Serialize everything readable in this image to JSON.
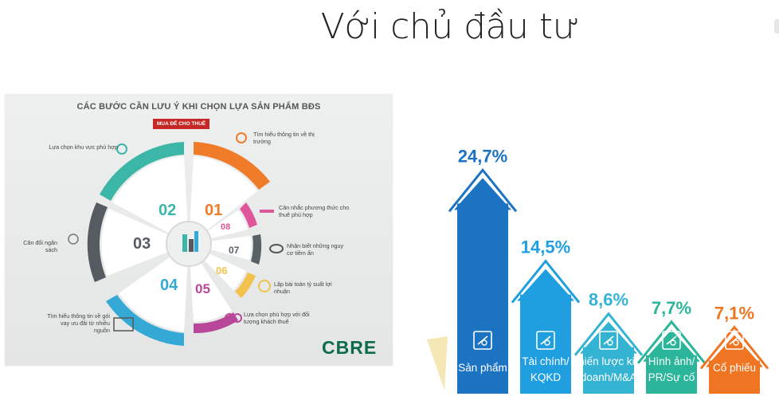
{
  "page": {
    "title": "Với chủ đầu tư"
  },
  "infographic": {
    "title": "CÁC BƯỚC CẦN LƯU Ý KHI CHỌN LỰA SẢN PHẨM BĐS",
    "badge": "MUA ĐỂ CHO THUÊ",
    "brand": "CBRE",
    "segments": [
      {
        "num": "01",
        "color": "#f07c2a"
      },
      {
        "num": "02",
        "color": "#3cb6a6"
      },
      {
        "num": "03",
        "color": "#555b60"
      },
      {
        "num": "04",
        "color": "#35a9d6"
      },
      {
        "num": "05",
        "color": "#b8479a"
      },
      {
        "num": "06",
        "color": "#f2c14e"
      },
      {
        "num": "07",
        "color": "#5a6166"
      },
      {
        "num": "08",
        "color": "#e0569a"
      }
    ],
    "notes": {
      "n01": "Tìm hiểu thông tin về thị trường",
      "n02": "Lựa chọn khu vực phù hợp",
      "n03": "Cân đối ngân sách",
      "n04": "Tìm hiểu thông tin về gói vay ưu đãi từ nhiều nguồn",
      "n05": "Lựa chọn phù hợp với đối tượng khách thuê",
      "n06": "Lập bài toán tỷ suất lợi nhuận",
      "n07": "Nhận biết những nguy cơ tiềm ẩn",
      "n08": "Cân nhắc phương thức cho thuê phù hợp"
    }
  },
  "chart_data": {
    "type": "bar",
    "categories": [
      "Sản phẩm",
      "Tài chính/ KQKD",
      "Chiến lược kinh doanh/M&A",
      "Hình ảnh/ PR/Sự cố",
      "Cổ phiếu"
    ],
    "category_lines": [
      [
        "Sản phẩm"
      ],
      [
        "Tài chính/",
        "KQKD"
      ],
      [
        "Chiến lược kinh",
        "doanh/M&A"
      ],
      [
        "Hình ảnh/",
        "PR/Sự cố"
      ],
      [
        "Cổ phiếu"
      ]
    ],
    "values": [
      24.7,
      14.5,
      8.6,
      7.7,
      7.1
    ],
    "value_labels": [
      "24,7%",
      "14,5%",
      "8,6%",
      "7,7%",
      "7,1%"
    ],
    "colors": [
      "#1c73c2",
      "#1f9fe0",
      "#35b3d3",
      "#2bb59a",
      "#f07522"
    ],
    "icons": [
      "house-hand-icon",
      "chart-magnifier-icon",
      "chess-rook-icon",
      "people-presentation-icon",
      "coins-chart-icon"
    ],
    "ylim": [
      0,
      30
    ],
    "grid": false,
    "title": "",
    "xlabel": "",
    "ylabel": ""
  }
}
